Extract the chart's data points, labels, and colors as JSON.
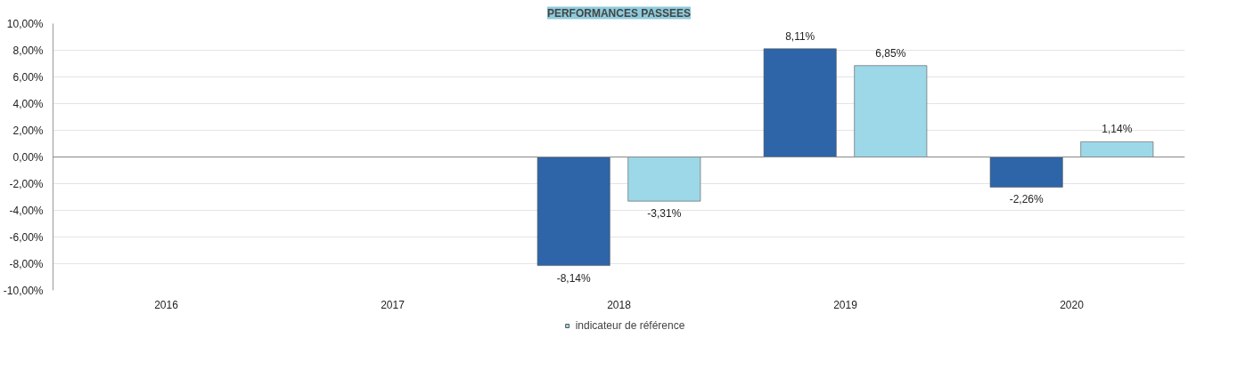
{
  "chart_data": {
    "type": "bar",
    "title": "PERFORMANCES PASSEES",
    "categories": [
      "2016",
      "2017",
      "2018",
      "2019",
      "2020"
    ],
    "series": [
      {
        "color": "#2e64a8",
        "values": [
          null,
          null,
          -8.14,
          8.11,
          -2.26
        ],
        "value_labels": [
          null,
          null,
          "-8,14%",
          "8,11%",
          "-2,26%"
        ]
      },
      {
        "name": "indicateur de référence",
        "color": "#9dd8e8",
        "values": [
          null,
          null,
          -3.31,
          6.85,
          1.14
        ],
        "value_labels": [
          null,
          null,
          "-3,31%",
          "6,85%",
          "1,14%"
        ]
      }
    ],
    "ylim": [
      -10,
      10
    ],
    "yticks": [
      {
        "value": -10,
        "label": "-10,00%"
      },
      {
        "value": -8,
        "label": "-8,00%"
      },
      {
        "value": -6,
        "label": "-6,00%"
      },
      {
        "value": -4,
        "label": "-4,00%"
      },
      {
        "value": -2,
        "label": "-2,00%"
      },
      {
        "value": 0,
        "label": "0,00%"
      },
      {
        "value": 2,
        "label": "2,00%"
      },
      {
        "value": 4,
        "label": "4,00%"
      },
      {
        "value": 6,
        "label": "6,00%"
      },
      {
        "value": 8,
        "label": "8,00%"
      },
      {
        "value": 10,
        "label": "10,00%"
      }
    ],
    "grid": "y",
    "legend": "bottom"
  }
}
